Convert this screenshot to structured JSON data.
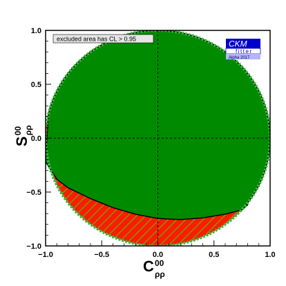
{
  "chart_data": {
    "type": "area",
    "xlim": [
      -1.0,
      1.0
    ],
    "ylim": [
      -1.0,
      1.0
    ],
    "x_ticks": [
      "−1.0",
      "−0.5",
      "0.0",
      "0.5",
      "1.0"
    ],
    "y_ticks": [
      "−1.0",
      "−0.5",
      "0.0",
      "0.5",
      "1.0"
    ],
    "x_tick_values": [
      -1.0,
      -0.5,
      0.0,
      0.5,
      1.0
    ],
    "y_tick_values": [
      -1.0,
      -0.5,
      0.0,
      0.5,
      1.0
    ],
    "xlabel_main": "C",
    "xlabel_sup": "00",
    "xlabel_sub": "ρρ",
    "ylabel_main": "S",
    "ylabel_sup": "00",
    "ylabel_sub": "ρρ",
    "legend_text": "excluded area has CL > 0.95",
    "logo": {
      "title": "CKM",
      "subtitle": "fitter",
      "caption": "Alpha 2017"
    },
    "regions": [
      {
        "name": "allowed (CL > 0.95)",
        "color": "#008a00",
        "boundary_upper_circle": true,
        "lower_boundary": {
          "x": [
            -1.0,
            -0.9,
            -0.8,
            -0.6,
            -0.4,
            -0.2,
            0.0,
            0.2,
            0.4,
            0.6,
            0.75,
            0.8
          ],
          "y": [
            -0.22,
            -0.38,
            -0.46,
            -0.56,
            -0.645,
            -0.705,
            -0.745,
            -0.755,
            -0.74,
            -0.705,
            -0.665,
            -0.62
          ]
        }
      },
      {
        "name": "excluded (hatched)",
        "color": "#ff1a00",
        "hatch_color": "#7a9a00"
      }
    ],
    "disk_edge_color": "#3fb53f",
    "grid": false,
    "reference_lines": {
      "x": 0.0,
      "y": 0.0,
      "style": "dashed"
    }
  }
}
